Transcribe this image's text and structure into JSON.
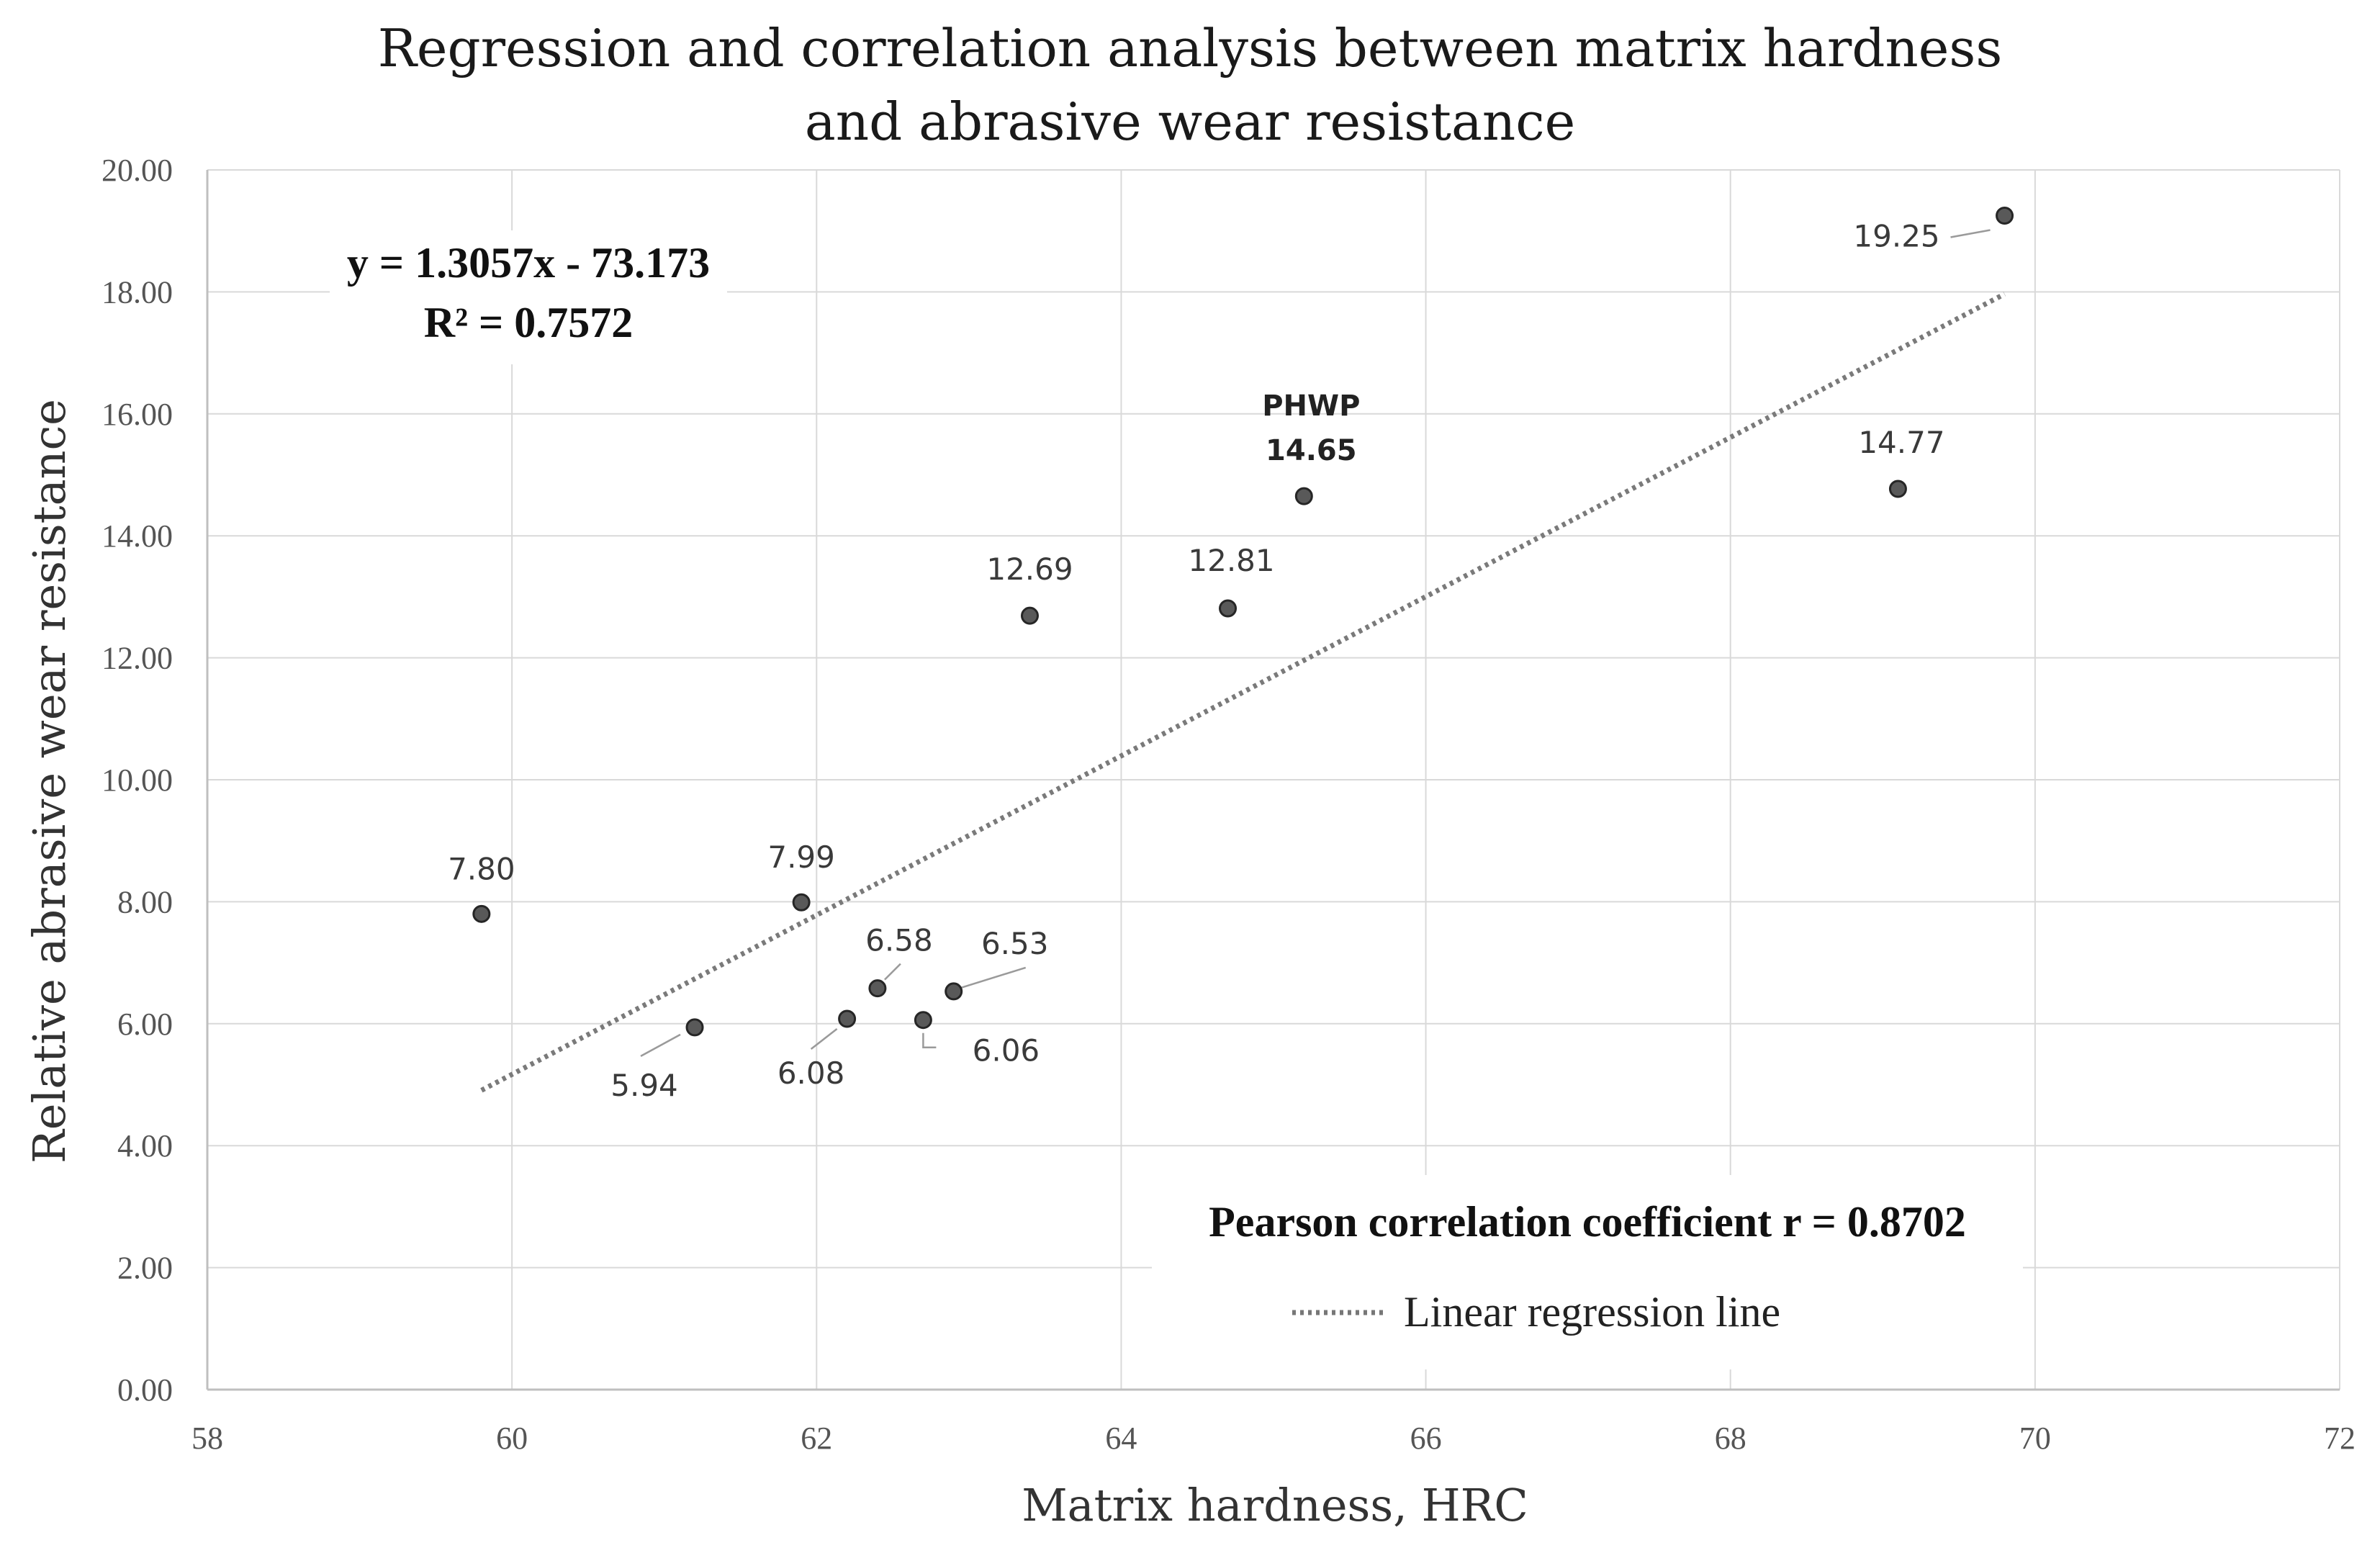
{
  "chart_data": {
    "type": "scatter",
    "title_lines": [
      "Regression and correlation analysis between matrix hardness",
      "and  abrasive wear resistance"
    ],
    "xlabel": "Matrix hardness, HRC",
    "ylabel": "Relative abrasive wear resistance",
    "xlim": [
      58,
      72
    ],
    "ylim": [
      0,
      20
    ],
    "x_ticks": [
      58,
      60,
      62,
      64,
      66,
      68,
      70,
      72
    ],
    "y_ticks": [
      "0.00",
      "2.00",
      "4.00",
      "6.00",
      "8.00",
      "10.00",
      "12.00",
      "14.00",
      "16.00",
      "18.00",
      "20.00"
    ],
    "grid": true,
    "points": [
      {
        "x": 59.8,
        "y": 7.8,
        "label": "7.80"
      },
      {
        "x": 61.2,
        "y": 5.94,
        "label": "5.94"
      },
      {
        "x": 61.9,
        "y": 7.99,
        "label": "7.99"
      },
      {
        "x": 62.2,
        "y": 6.08,
        "label": "6.08"
      },
      {
        "x": 62.4,
        "y": 6.58,
        "label": "6.58"
      },
      {
        "x": 62.7,
        "y": 6.06,
        "label": "6.06"
      },
      {
        "x": 62.9,
        "y": 6.53,
        "label": "6.53"
      },
      {
        "x": 63.4,
        "y": 12.69,
        "label": "12.69"
      },
      {
        "x": 64.7,
        "y": 12.81,
        "label": "12.81"
      },
      {
        "x": 65.2,
        "y": 14.65,
        "label": "14.65",
        "name": "PHWP"
      },
      {
        "x": 69.1,
        "y": 14.77,
        "label": "14.77"
      },
      {
        "x": 69.8,
        "y": 19.25,
        "label": "19.25"
      }
    ],
    "regression": {
      "slope": 1.3057,
      "intercept": -73.173,
      "x_range": [
        59.8,
        69.8
      ]
    },
    "equation_text": "y = 1.3057x - 73.173",
    "r2_text": "R² = 0.7572",
    "pearson_text": "Pearson correlation coefficient r = 0.8702",
    "legend": {
      "label": "Linear regression line",
      "placement": "bottom-right"
    }
  }
}
